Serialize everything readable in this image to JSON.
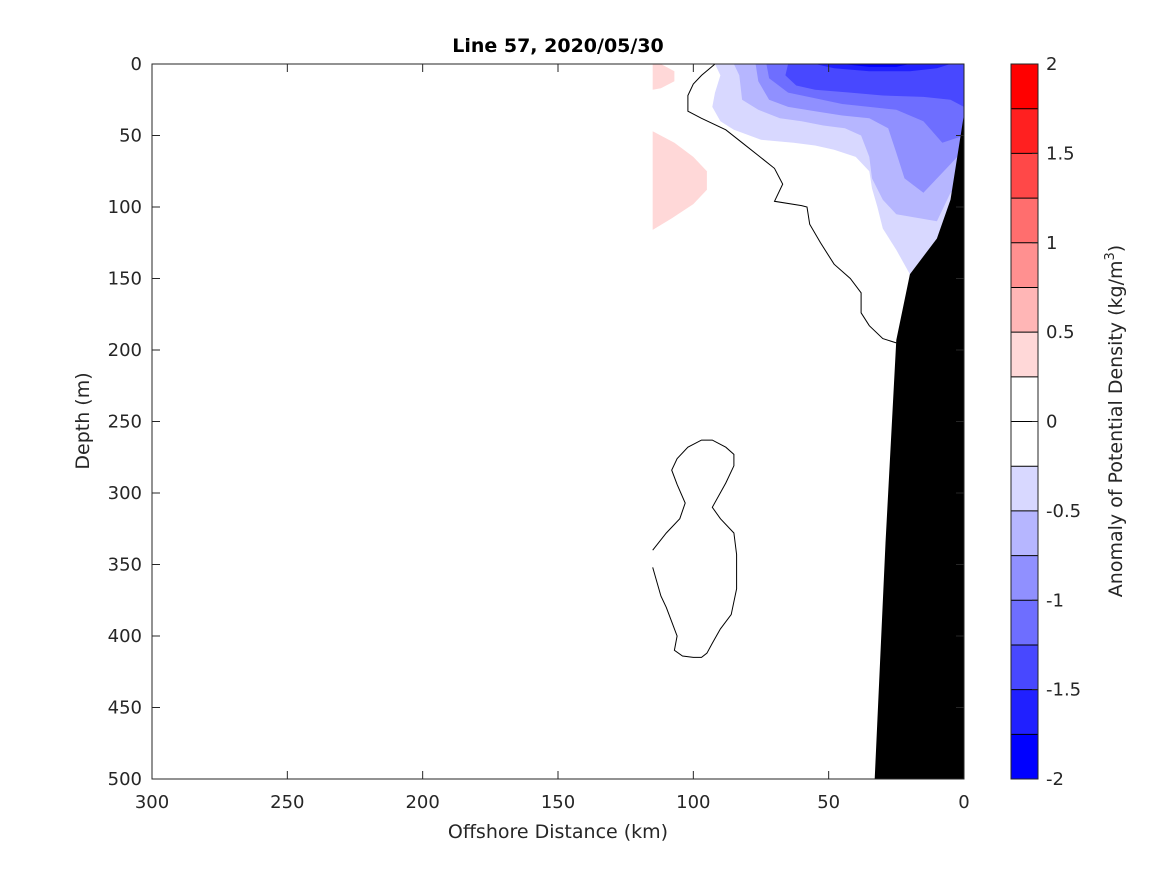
{
  "chart_data": {
    "type": "heatmap",
    "title": "Line 57, 2020/05/30",
    "xlabel": "Offshore Distance (km)",
    "ylabel": "Depth (m)",
    "colorbar_label": "Anomaly of Potential Density (kg/m",
    "colorbar_label_sup": "3",
    "colorbar_label_end": ")",
    "xlim": [
      300,
      0
    ],
    "ylim": [
      0,
      500
    ],
    "x_reversed": true,
    "y_reversed": true,
    "x_ticks": [
      300,
      250,
      200,
      150,
      100,
      50,
      0
    ],
    "y_ticks": [
      0,
      50,
      100,
      150,
      200,
      250,
      300,
      350,
      400,
      450,
      500
    ],
    "colorbar": {
      "range": [
        -2,
        2
      ],
      "step": 0.25,
      "ticks": [
        2,
        1.5,
        1,
        0.5,
        0,
        -0.5,
        -1,
        -1.5,
        -2
      ],
      "levels": [
        {
          "lo": 1.75,
          "hi": 2.0,
          "color": "#ff0000"
        },
        {
          "lo": 1.5,
          "hi": 1.75,
          "color": "#ff2020"
        },
        {
          "lo": 1.25,
          "hi": 1.5,
          "color": "#ff4848"
        },
        {
          "lo": 1.0,
          "hi": 1.25,
          "color": "#ff6e6e"
        },
        {
          "lo": 0.75,
          "hi": 1.0,
          "color": "#ff9090"
        },
        {
          "lo": 0.5,
          "hi": 0.75,
          "color": "#ffb6b6"
        },
        {
          "lo": 0.25,
          "hi": 0.5,
          "color": "#ffd8d8"
        },
        {
          "lo": 0.0,
          "hi": 0.25,
          "color": "#ffffff"
        },
        {
          "lo": -0.25,
          "hi": 0.0,
          "color": "#ffffff"
        },
        {
          "lo": -0.5,
          "hi": -0.25,
          "color": "#d8d8ff"
        },
        {
          "lo": -0.75,
          "hi": -0.5,
          "color": "#b6b6ff"
        },
        {
          "lo": -1.0,
          "hi": -0.75,
          "color": "#9090ff"
        },
        {
          "lo": -1.25,
          "hi": -1.0,
          "color": "#6e6eff"
        },
        {
          "lo": -1.5,
          "hi": -1.25,
          "color": "#4848ff"
        },
        {
          "lo": -1.75,
          "hi": -1.5,
          "color": "#2020ff"
        },
        {
          "lo": -2.0,
          "hi": -1.75,
          "color": "#0000ff"
        }
      ]
    },
    "regions": [
      {
        "name": "positive-anomaly-surface",
        "level": 0.25,
        "color": "#ffd8d8",
        "points": [
          [
            115,
            0
          ],
          [
            112,
            0
          ],
          [
            107,
            5
          ],
          [
            107,
            12
          ],
          [
            112,
            17
          ],
          [
            115,
            18
          ]
        ]
      },
      {
        "name": "positive-anomaly-subsurface",
        "level": 0.25,
        "color": "#ffd8d8",
        "points": [
          [
            115,
            47
          ],
          [
            107,
            55
          ],
          [
            100,
            65
          ],
          [
            95,
            75
          ],
          [
            95,
            88
          ],
          [
            100,
            98
          ],
          [
            108,
            108
          ],
          [
            115,
            116
          ]
        ]
      },
      {
        "name": "negative-anomaly-025",
        "level": -0.25,
        "color": "#d8d8ff",
        "points": [
          [
            92,
            0
          ],
          [
            90,
            8
          ],
          [
            92,
            20
          ],
          [
            93,
            30
          ],
          [
            90,
            40
          ],
          [
            85,
            46
          ],
          [
            75,
            53
          ],
          [
            63,
            55
          ],
          [
            55,
            57
          ],
          [
            48,
            60
          ],
          [
            40,
            65
          ],
          [
            35,
            75
          ],
          [
            34,
            87
          ],
          [
            32,
            100
          ],
          [
            30,
            115
          ],
          [
            25,
            130
          ],
          [
            20,
            147
          ],
          [
            10,
            122
          ],
          [
            5,
            105
          ],
          [
            0,
            95
          ],
          [
            0,
            0
          ]
        ]
      },
      {
        "name": "negative-anomaly-050",
        "level": -0.5,
        "color": "#b6b6ff",
        "points": [
          [
            85,
            0
          ],
          [
            83,
            8
          ],
          [
            82,
            25
          ],
          [
            76,
            32
          ],
          [
            68,
            38
          ],
          [
            60,
            40
          ],
          [
            52,
            43
          ],
          [
            44,
            45
          ],
          [
            38,
            50
          ],
          [
            35,
            65
          ],
          [
            34,
            80
          ],
          [
            30,
            95
          ],
          [
            25,
            105
          ],
          [
            10,
            110
          ],
          [
            5,
            90
          ],
          [
            0,
            85
          ],
          [
            0,
            0
          ]
        ]
      },
      {
        "name": "negative-anomaly-075",
        "level": -0.75,
        "color": "#9090ff",
        "points": [
          [
            77,
            0
          ],
          [
            76,
            12
          ],
          [
            72,
            25
          ],
          [
            65,
            30
          ],
          [
            55,
            33
          ],
          [
            45,
            36
          ],
          [
            35,
            38
          ],
          [
            28,
            45
          ],
          [
            25,
            62
          ],
          [
            22,
            80
          ],
          [
            15,
            90
          ],
          [
            5,
            70
          ],
          [
            0,
            60
          ],
          [
            0,
            0
          ]
        ]
      },
      {
        "name": "negative-anomaly-100",
        "level": -1.0,
        "color": "#6e6eff",
        "points": [
          [
            73,
            0
          ],
          [
            72,
            10
          ],
          [
            65,
            20
          ],
          [
            55,
            24
          ],
          [
            45,
            28
          ],
          [
            35,
            30
          ],
          [
            25,
            32
          ],
          [
            15,
            40
          ],
          [
            8,
            55
          ],
          [
            0,
            50
          ],
          [
            0,
            0
          ]
        ]
      },
      {
        "name": "negative-anomaly-125",
        "level": -1.25,
        "color": "#4848ff",
        "points": [
          [
            65,
            0
          ],
          [
            66,
            8
          ],
          [
            62,
            15
          ],
          [
            55,
            18
          ],
          [
            42,
            20
          ],
          [
            30,
            22
          ],
          [
            15,
            23
          ],
          [
            5,
            25
          ],
          [
            0,
            30
          ],
          [
            0,
            0
          ]
        ]
      },
      {
        "name": "negative-anomaly-150",
        "level": -1.5,
        "color": "#2020ff",
        "points": [
          [
            55,
            0
          ],
          [
            48,
            3
          ],
          [
            35,
            5
          ],
          [
            20,
            5
          ],
          [
            10,
            3
          ],
          [
            5,
            0
          ]
        ]
      },
      {
        "name": "negative-anomaly-175",
        "level": -1.75,
        "color": "#0000ff",
        "points": [
          [
            45,
            0
          ],
          [
            35,
            2
          ],
          [
            25,
            2
          ],
          [
            20,
            0
          ]
        ]
      }
    ],
    "contours": [
      {
        "name": "zero-contour-main",
        "level": 0,
        "points": [
          [
            92,
            0
          ],
          [
            97,
            8
          ],
          [
            100,
            14
          ],
          [
            102,
            22
          ],
          [
            102,
            33
          ],
          [
            97,
            38
          ],
          [
            88,
            46
          ],
          [
            82,
            55
          ],
          [
            76,
            64
          ],
          [
            70,
            73
          ],
          [
            67,
            84
          ],
          [
            70,
            96
          ],
          [
            60,
            99
          ],
          [
            58,
            100
          ],
          [
            57,
            112
          ],
          [
            53,
            125
          ],
          [
            48,
            140
          ],
          [
            42,
            150
          ],
          [
            38,
            160
          ],
          [
            38,
            174
          ],
          [
            35,
            183
          ],
          [
            30,
            192
          ],
          [
            25,
            195
          ]
        ]
      },
      {
        "name": "zero-contour-deep",
        "level": 0,
        "points": [
          [
            115,
            340
          ],
          [
            110,
            328
          ],
          [
            105,
            318
          ],
          [
            103,
            307
          ],
          [
            106,
            294
          ],
          [
            108,
            284
          ],
          [
            106,
            276
          ],
          [
            102,
            268
          ],
          [
            97,
            263
          ],
          [
            93,
            263
          ],
          [
            88,
            268
          ],
          [
            85,
            273
          ],
          [
            85,
            281
          ],
          [
            88,
            293
          ],
          [
            93,
            310
          ],
          [
            90,
            318
          ],
          [
            85,
            328
          ],
          [
            84,
            343
          ],
          [
            84,
            367
          ],
          [
            86,
            385
          ],
          [
            90,
            395
          ],
          [
            93,
            405
          ],
          [
            95,
            412
          ],
          [
            97,
            415
          ],
          [
            100,
            415
          ],
          [
            104,
            414
          ],
          [
            107,
            410
          ],
          [
            106,
            400
          ],
          [
            108,
            390
          ],
          [
            110,
            380
          ],
          [
            112,
            372
          ],
          [
            115,
            352
          ]
        ]
      }
    ],
    "bathymetry": {
      "name": "seafloor",
      "color": "#000000",
      "points": [
        [
          33,
          500
        ],
        [
          29,
          335
        ],
        [
          25,
          193
        ],
        [
          20,
          147
        ],
        [
          10,
          122
        ],
        [
          5,
          95
        ],
        [
          0,
          35
        ]
      ]
    }
  }
}
